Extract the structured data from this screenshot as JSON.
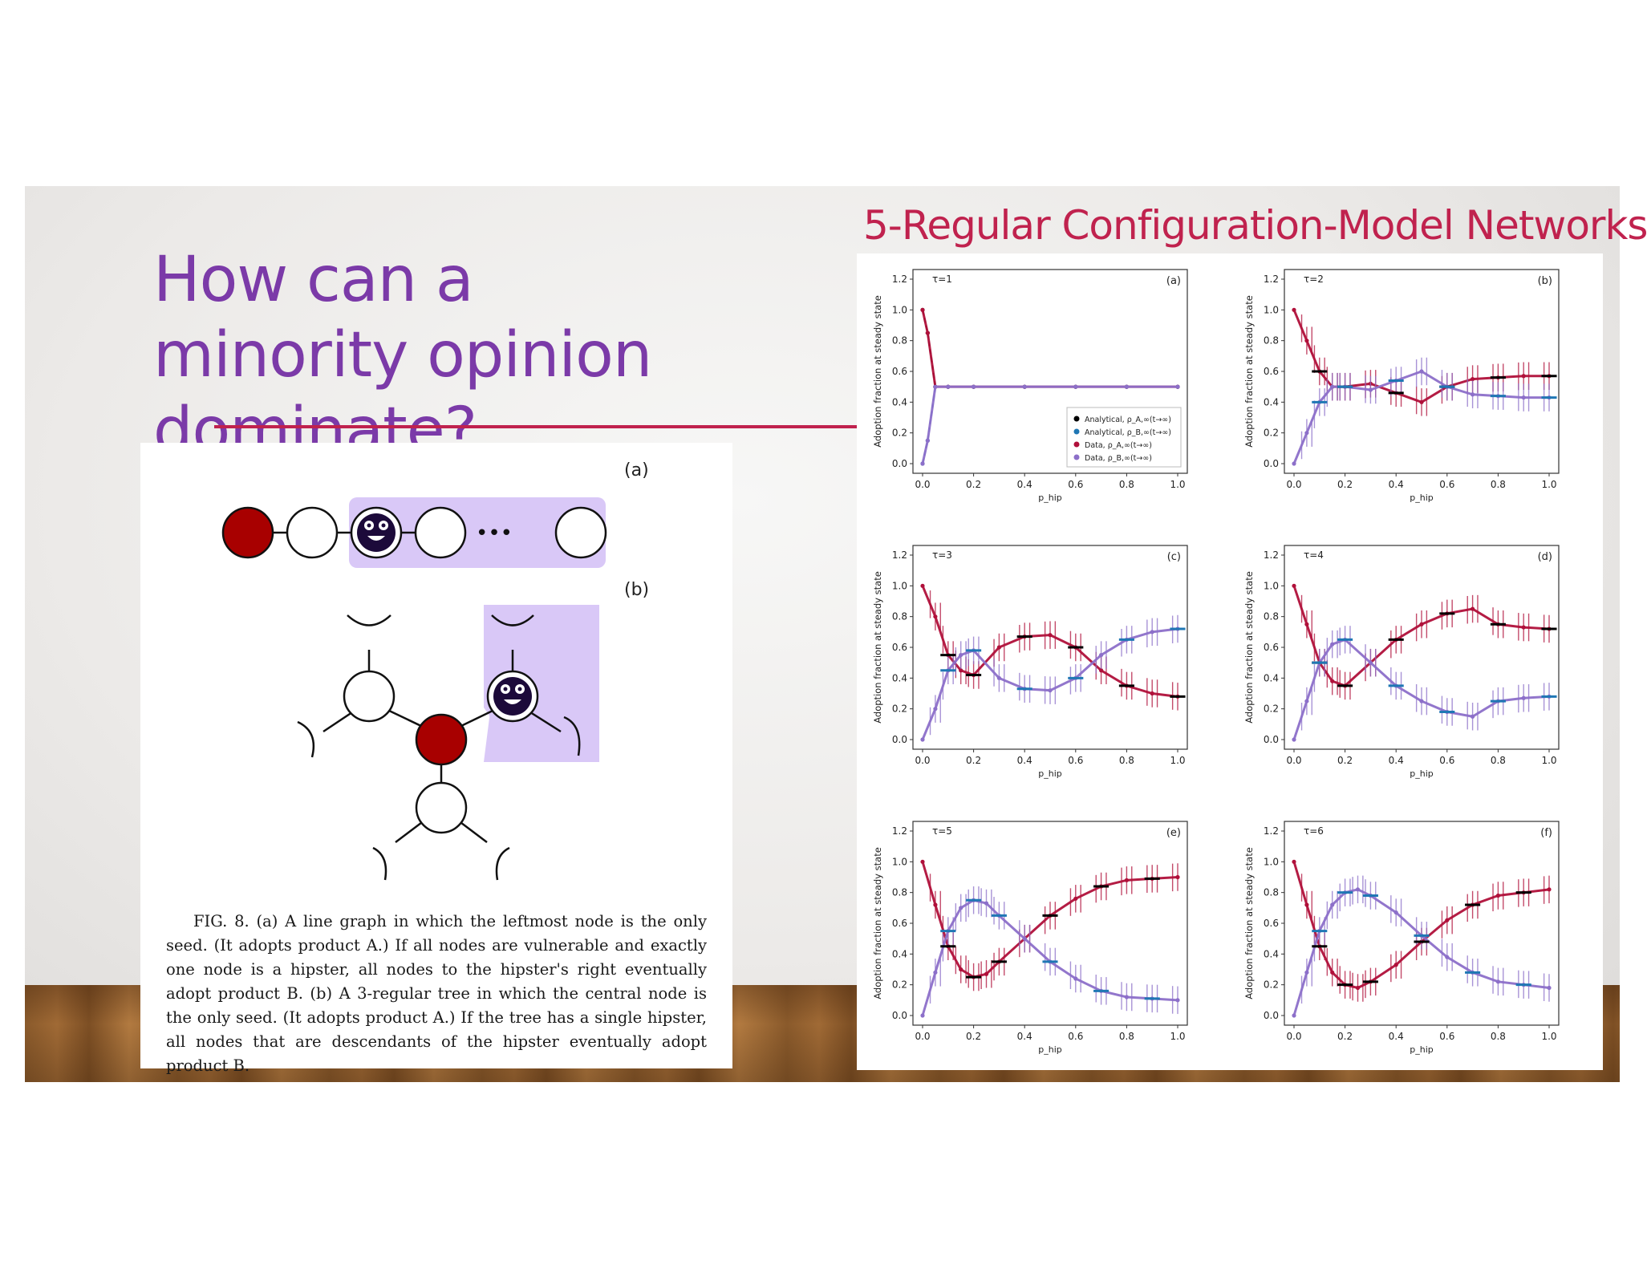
{
  "slide": {
    "title": "How can a minority opinion dominate?",
    "right_heading": "5-Regular Configuration-Model Networks",
    "accent_color": "#c0224e",
    "title_color": "#7b3aa8"
  },
  "figure8": {
    "label_a": "(a)",
    "label_b": "(b)",
    "ellipsis": "•••",
    "caption": "FIG. 8. (a) A line graph in which the leftmost node is the only seed. (It adopts product A.) If all nodes are vulnerable and exactly one node is a hipster, all nodes to the hipster's right eventually adopt product B. (b) A 3-regular tree in which the central node is the only seed. (It adopts product A.) If the tree has a single hipster, all nodes that are descendants of the hipster eventually adopt product B.",
    "seed_color": "#a80000",
    "hipster_region_color": "#d9c8f7",
    "hipster_face_color": "#1c0a3a"
  },
  "chart_data": [
    {
      "type": "line",
      "panel": "(a)",
      "tau": "τ=1",
      "xlabel": "p_hip",
      "ylabel": "Adoption fraction at steady state",
      "xlim": [
        0,
        1
      ],
      "ylim": [
        0,
        1.2
      ],
      "xticks": [
        "0.0",
        "0.2",
        "0.4",
        "0.6",
        "0.8",
        "1.0"
      ],
      "yticks": [
        "0.0",
        "0.2",
        "0.4",
        "0.6",
        "0.8",
        "1.0",
        "1.2"
      ],
      "legend": [
        "Analytical, ρ_A,∞(t→∞)",
        "Analytical, ρ_B,∞(t→∞)",
        "Data, ρ_A,∞(t→∞)",
        "Data, ρ_B,∞(t→∞)"
      ],
      "x": [
        0,
        0.02,
        0.05,
        0.1,
        0.2,
        0.4,
        0.6,
        0.8,
        1.0
      ],
      "series": [
        {
          "name": "Analytical A",
          "color": "#000000",
          "values": [
            1.0,
            0.85,
            0.5,
            0.5,
            0.5,
            0.5,
            0.5,
            0.5,
            0.5
          ]
        },
        {
          "name": "Analytical B",
          "color": "#1f77b4",
          "values": [
            0.0,
            0.15,
            0.5,
            0.5,
            0.5,
            0.5,
            0.5,
            0.5,
            0.5
          ]
        },
        {
          "name": "Data A",
          "color": "#b0103a",
          "values": [
            1.0,
            0.85,
            0.5,
            0.5,
            0.5,
            0.5,
            0.5,
            0.5,
            0.5
          ]
        },
        {
          "name": "Data B",
          "color": "#8c6fc9",
          "values": [
            0.0,
            0.15,
            0.5,
            0.5,
            0.5,
            0.5,
            0.5,
            0.5,
            0.5
          ]
        }
      ]
    },
    {
      "type": "line",
      "panel": "(b)",
      "tau": "τ=2",
      "xlabel": "p_hip",
      "ylabel": "Adoption fraction at steady state",
      "xlim": [
        0,
        1
      ],
      "ylim": [
        0,
        1.2
      ],
      "xticks": [
        "0.0",
        "0.2",
        "0.4",
        "0.6",
        "0.8",
        "1.0"
      ],
      "yticks": [
        "0.0",
        "0.2",
        "0.4",
        "0.6",
        "0.8",
        "1.0",
        "1.2"
      ],
      "x": [
        0,
        0.05,
        0.1,
        0.15,
        0.2,
        0.3,
        0.4,
        0.5,
        0.6,
        0.7,
        0.8,
        0.9,
        1.0
      ],
      "series": [
        {
          "name": "Data A",
          "color": "#b0103a",
          "values": [
            1.0,
            0.8,
            0.6,
            0.5,
            0.5,
            0.52,
            0.46,
            0.4,
            0.5,
            0.55,
            0.56,
            0.57,
            0.57
          ]
        },
        {
          "name": "Data B",
          "color": "#8c6fc9",
          "values": [
            0.0,
            0.2,
            0.4,
            0.5,
            0.5,
            0.48,
            0.54,
            0.6,
            0.5,
            0.45,
            0.44,
            0.43,
            0.43
          ]
        }
      ]
    },
    {
      "type": "line",
      "panel": "(c)",
      "tau": "τ=3",
      "xlabel": "p_hip",
      "ylabel": "Adoption fraction at steady state",
      "xlim": [
        0,
        1
      ],
      "ylim": [
        0,
        1.2
      ],
      "xticks": [
        "0.0",
        "0.2",
        "0.4",
        "0.6",
        "0.8",
        "1.0"
      ],
      "yticks": [
        "0.0",
        "0.2",
        "0.4",
        "0.6",
        "0.8",
        "1.0",
        "1.2"
      ],
      "x": [
        0,
        0.05,
        0.1,
        0.15,
        0.2,
        0.3,
        0.4,
        0.5,
        0.6,
        0.7,
        0.8,
        0.9,
        1.0
      ],
      "series": [
        {
          "name": "Data A",
          "color": "#b0103a",
          "values": [
            1.0,
            0.8,
            0.55,
            0.45,
            0.42,
            0.6,
            0.67,
            0.68,
            0.6,
            0.45,
            0.35,
            0.3,
            0.28
          ]
        },
        {
          "name": "Data B",
          "color": "#8c6fc9",
          "values": [
            0.0,
            0.2,
            0.45,
            0.55,
            0.58,
            0.4,
            0.33,
            0.32,
            0.4,
            0.55,
            0.65,
            0.7,
            0.72
          ]
        }
      ]
    },
    {
      "type": "line",
      "panel": "(d)",
      "tau": "τ=4",
      "xlabel": "p_hip",
      "ylabel": "Adoption fraction at steady state",
      "xlim": [
        0,
        1
      ],
      "ylim": [
        0,
        1.2
      ],
      "xticks": [
        "0.0",
        "0.2",
        "0.4",
        "0.6",
        "0.8",
        "1.0"
      ],
      "yticks": [
        "0.0",
        "0.2",
        "0.4",
        "0.6",
        "0.8",
        "1.0",
        "1.2"
      ],
      "x": [
        0,
        0.05,
        0.1,
        0.15,
        0.2,
        0.3,
        0.4,
        0.5,
        0.6,
        0.7,
        0.8,
        0.9,
        1.0
      ],
      "series": [
        {
          "name": "Data A",
          "color": "#b0103a",
          "values": [
            1.0,
            0.75,
            0.5,
            0.38,
            0.35,
            0.5,
            0.65,
            0.75,
            0.82,
            0.85,
            0.75,
            0.73,
            0.72
          ]
        },
        {
          "name": "Data B",
          "color": "#8c6fc9",
          "values": [
            0.0,
            0.25,
            0.5,
            0.62,
            0.65,
            0.5,
            0.35,
            0.25,
            0.18,
            0.15,
            0.25,
            0.27,
            0.28
          ]
        }
      ]
    },
    {
      "type": "line",
      "panel": "(e)",
      "tau": "τ=5",
      "xlabel": "p_hip",
      "ylabel": "Adoption fraction at steady state",
      "xlim": [
        0,
        1
      ],
      "ylim": [
        0,
        1.2
      ],
      "xticks": [
        "0.0",
        "0.2",
        "0.4",
        "0.6",
        "0.8",
        "1.0"
      ],
      "yticks": [
        "0.0",
        "0.2",
        "0.4",
        "0.6",
        "0.8",
        "1.0",
        "1.2"
      ],
      "x": [
        0,
        0.05,
        0.1,
        0.15,
        0.2,
        0.25,
        0.3,
        0.4,
        0.5,
        0.6,
        0.7,
        0.8,
        0.9,
        1.0
      ],
      "series": [
        {
          "name": "Data A",
          "color": "#b0103a",
          "values": [
            1.0,
            0.72,
            0.45,
            0.3,
            0.25,
            0.27,
            0.35,
            0.5,
            0.65,
            0.76,
            0.84,
            0.88,
            0.89,
            0.9
          ]
        },
        {
          "name": "Data B",
          "color": "#8c6fc9",
          "values": [
            0.0,
            0.28,
            0.55,
            0.7,
            0.75,
            0.73,
            0.65,
            0.5,
            0.35,
            0.24,
            0.16,
            0.12,
            0.11,
            0.1
          ]
        }
      ]
    },
    {
      "type": "line",
      "panel": "(f)",
      "tau": "τ=6",
      "xlabel": "p_hip",
      "ylabel": "Adoption fraction at steady state",
      "xlim": [
        0,
        1
      ],
      "ylim": [
        0,
        1.2
      ],
      "xticks": [
        "0.0",
        "0.2",
        "0.4",
        "0.6",
        "0.8",
        "1.0"
      ],
      "yticks": [
        "0.0",
        "0.2",
        "0.4",
        "0.6",
        "0.8",
        "1.0",
        "1.2"
      ],
      "x": [
        0,
        0.05,
        0.1,
        0.15,
        0.2,
        0.25,
        0.3,
        0.4,
        0.5,
        0.6,
        0.7,
        0.8,
        0.9,
        1.0
      ],
      "series": [
        {
          "name": "Data A",
          "color": "#b0103a",
          "values": [
            1.0,
            0.72,
            0.45,
            0.28,
            0.2,
            0.18,
            0.22,
            0.33,
            0.48,
            0.62,
            0.72,
            0.78,
            0.8,
            0.82
          ]
        },
        {
          "name": "Data B",
          "color": "#8c6fc9",
          "values": [
            0.0,
            0.28,
            0.55,
            0.72,
            0.8,
            0.82,
            0.78,
            0.67,
            0.52,
            0.38,
            0.28,
            0.22,
            0.2,
            0.18
          ]
        }
      ]
    }
  ]
}
